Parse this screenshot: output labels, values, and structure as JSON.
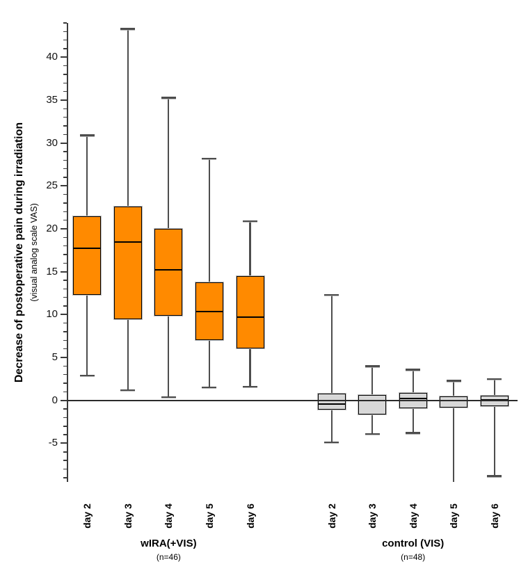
{
  "chart_data": {
    "type": "boxplot",
    "title": "",
    "ylabel": "Decrease of postoperative pain during irradiation",
    "ylabel_sub": "(visual analog scale VAS)",
    "ylim": [
      -9.5,
      44
    ],
    "yticks": [
      -5,
      0,
      5,
      10,
      15,
      20,
      25,
      30,
      35,
      40
    ],
    "minor_tick_step": 1,
    "grid": false,
    "zero_line": true,
    "groups": [
      {
        "label": "wIRA(+VIS)",
        "sublabel": "(n=46)",
        "box_color": "#FF8A00",
        "boxes": [
          {
            "category": "day 2",
            "whisker_low": 2.9,
            "q1": 12.3,
            "median": 17.7,
            "q3": 21.5,
            "whisker_high": 30.9,
            "low_capped": true,
            "high_capped": true
          },
          {
            "category": "day 3",
            "whisker_low": 1.2,
            "q1": 9.5,
            "median": 18.5,
            "q3": 22.6,
            "whisker_high": 43.3,
            "low_capped": true,
            "high_capped": true
          },
          {
            "category": "day 4",
            "whisker_low": 0.4,
            "q1": 9.9,
            "median": 15.2,
            "q3": 20.0,
            "whisker_high": 35.3,
            "low_capped": true,
            "high_capped": true
          },
          {
            "category": "day 5",
            "whisker_low": 1.5,
            "q1": 7.0,
            "median": 10.4,
            "q3": 13.8,
            "whisker_high": 28.2,
            "low_capped": true,
            "high_capped": true
          },
          {
            "category": "day 6",
            "whisker_low": 1.6,
            "q1": 6.1,
            "median": 9.7,
            "q3": 14.5,
            "whisker_high": 20.9,
            "low_capped": true,
            "high_capped": true
          }
        ]
      },
      {
        "label": "control (VIS)",
        "sublabel": "(n=48)",
        "box_color": "#D8D8D8",
        "boxes": [
          {
            "category": "day 2",
            "whisker_low": -4.9,
            "q1": -1.1,
            "median": -0.45,
            "q3": 0.8,
            "whisker_high": 12.3,
            "low_capped": true,
            "high_capped": true
          },
          {
            "category": "day 3",
            "whisker_low": -3.9,
            "q1": -1.6,
            "median": 0.0,
            "q3": 0.65,
            "whisker_high": 4.0,
            "low_capped": true,
            "high_capped": true
          },
          {
            "category": "day 4",
            "whisker_low": -3.8,
            "q1": -0.9,
            "median": 0.25,
            "q3": 0.9,
            "whisker_high": 3.6,
            "low_capped": true,
            "high_capped": true
          },
          {
            "category": "day 5",
            "whisker_low": -9.5,
            "q1": -0.85,
            "median": 0.0,
            "q3": 0.45,
            "whisker_high": 2.3,
            "low_capped": false,
            "high_capped": true
          },
          {
            "category": "day 6",
            "whisker_low": -8.8,
            "q1": -0.65,
            "median": 0.1,
            "q3": 0.55,
            "whisker_high": 2.5,
            "low_capped": true,
            "high_capped": true
          }
        ]
      }
    ]
  }
}
